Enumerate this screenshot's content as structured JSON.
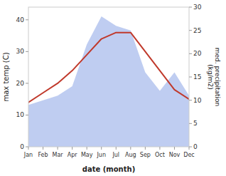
{
  "chart_data": {
    "type": "line",
    "categories": [
      "Jan",
      "Feb",
      "Mar",
      "Apr",
      "May",
      "Jun",
      "Jul",
      "Aug",
      "Sep",
      "Oct",
      "Nov",
      "Dec"
    ],
    "series": [
      {
        "type": "area",
        "axis": "y2",
        "color": "#b8c8f0",
        "values": [
          9,
          10,
          11,
          13,
          22,
          28,
          26,
          25,
          16,
          12,
          16,
          11
        ]
      },
      {
        "type": "line",
        "color": "#c0392b",
        "values": [
          14,
          17,
          20,
          24,
          29,
          34,
          36,
          36,
          30,
          24,
          18,
          15
        ]
      }
    ],
    "xlabel": "date (month)",
    "ylabel": "max temp (C)",
    "y2label": "med. precipitation\n(kg/m2)",
    "ylim": [
      0,
      44
    ],
    "yticks": [
      0,
      10,
      20,
      30,
      40
    ],
    "y2lim": [
      0,
      30
    ],
    "y2ticks": [
      0,
      5,
      10,
      15,
      20,
      25,
      30
    ],
    "grid": false
  }
}
